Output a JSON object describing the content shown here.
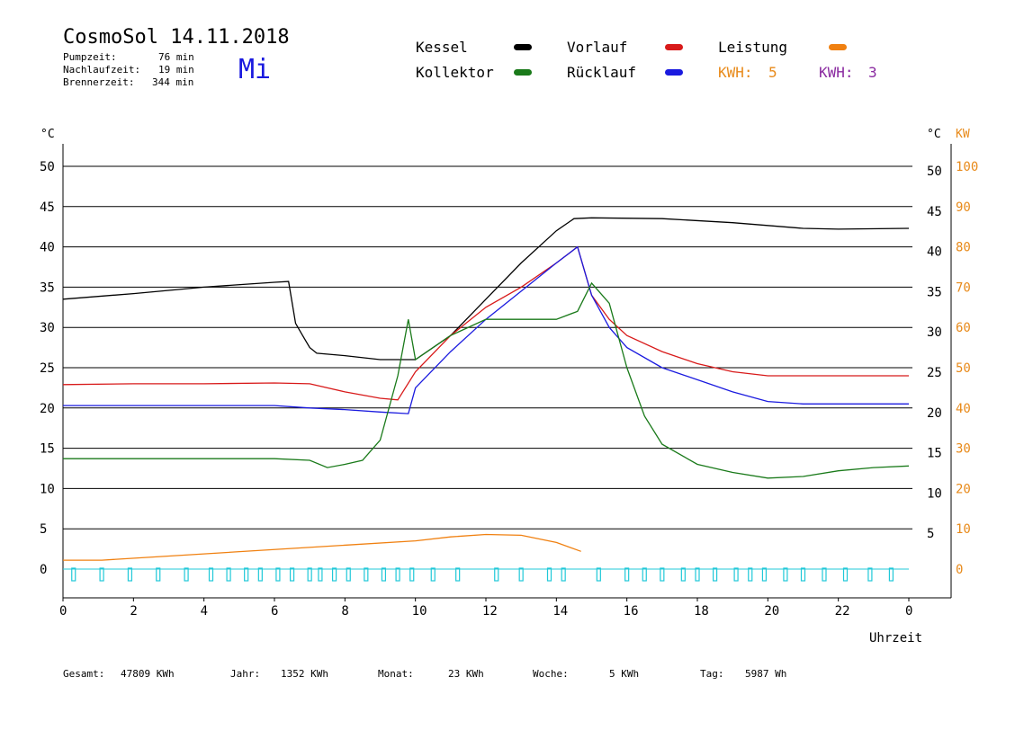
{
  "header": {
    "title": "CosmoSol 14.11.2018",
    "weekday": "Mi",
    "stats": [
      {
        "label": "Pumpzeit:",
        "value": "76 min"
      },
      {
        "label": "Nachlaufzeit:",
        "value": "19 min"
      },
      {
        "label": "Brennerzeit:",
        "value": "344 min"
      }
    ]
  },
  "legend": {
    "kessel": {
      "label": "Kessel",
      "color": "#000000"
    },
    "kollektor": {
      "label": "Kollektor",
      "color": "#1a7a1a"
    },
    "vorlauf": {
      "label": "Vorlauf",
      "color": "#d81a1a"
    },
    "ruecklauf": {
      "label": "Rücklauf",
      "color": "#1a1adf"
    },
    "leistung": {
      "label": "Leistung",
      "color": "#f08010"
    },
    "kwh1": {
      "label": "KWH:",
      "value": "5",
      "color": "#e88a1a"
    },
    "kwh2": {
      "label": "KWH:",
      "value": "3",
      "color": "#8a2aa0"
    }
  },
  "axes": {
    "left_unit": "°C",
    "right_unit": "°C",
    "right_unit2": "KW",
    "xlabel": "Uhrzeit"
  },
  "footer": {
    "gesamt_label": "Gesamt:",
    "gesamt_value": "47809 KWh",
    "jahr_label": "Jahr:",
    "jahr_value": "1352 KWh",
    "monat_label": "Monat:",
    "monat_value": "23 KWh",
    "woche_label": "Woche:",
    "woche_value": "5 KWh",
    "tag_label": "Tag:",
    "tag_value": "5987 Wh"
  },
  "chart_data": {
    "type": "line",
    "xlabel": "Uhrzeit",
    "ylabel": "°C",
    "xlim": [
      0,
      24
    ],
    "ylim": [
      0,
      50
    ],
    "y2lim": [
      0,
      100
    ],
    "x_ticks": [
      "0",
      "2",
      "4",
      "6",
      "8",
      "10",
      "12",
      "14",
      "16",
      "18",
      "20",
      "22",
      "0"
    ],
    "y_ticks": [
      0,
      5,
      10,
      15,
      20,
      25,
      30,
      35,
      40,
      45,
      50
    ],
    "y_ticks_right": [
      5,
      10,
      15,
      20,
      25,
      30,
      35,
      40,
      45,
      50
    ],
    "y2_ticks": [
      0,
      10,
      20,
      30,
      40,
      50,
      60,
      70,
      80,
      90,
      100
    ],
    "grid": "horizontal",
    "series": [
      {
        "name": "Kessel",
        "color": "#000000",
        "x": [
          0,
          2,
          4,
          6,
          6.4,
          6.6,
          6.8,
          7.0,
          7.2,
          8,
          9,
          10,
          11,
          12,
          13,
          14,
          14.5,
          15,
          17,
          19,
          21,
          22,
          24
        ],
        "y": [
          33.5,
          34.2,
          35,
          35.6,
          35.7,
          30.5,
          29,
          27.5,
          26.8,
          26.5,
          26,
          26,
          29,
          33.5,
          38,
          42,
          43.5,
          43.6,
          43.5,
          43,
          42.3,
          42.2,
          42.3
        ]
      },
      {
        "name": "Vorlauf",
        "color": "#d81a1a",
        "x": [
          0,
          2,
          4,
          6,
          7,
          8,
          9,
          9.5,
          10,
          11,
          12,
          13,
          14,
          14.6,
          15,
          15.5,
          16,
          17,
          18,
          19,
          20,
          22,
          24
        ],
        "y": [
          22.9,
          23,
          23,
          23.1,
          23,
          22,
          21.2,
          21,
          24.5,
          29,
          32.5,
          35,
          38,
          40,
          34,
          31,
          29,
          27,
          25.5,
          24.5,
          24,
          24,
          24
        ]
      },
      {
        "name": "Rücklauf",
        "color": "#1a1adf",
        "x": [
          0,
          2,
          4,
          6,
          7,
          8,
          9,
          9.8,
          10,
          11,
          12,
          13,
          14,
          14.6,
          15,
          15.5,
          16,
          17,
          18,
          19,
          20,
          21,
          22,
          24
        ],
        "y": [
          20.3,
          20.3,
          20.3,
          20.3,
          20,
          19.8,
          19.5,
          19.3,
          22.5,
          27,
          31,
          34.5,
          38,
          40,
          34,
          30,
          27.5,
          25,
          23.5,
          22,
          20.8,
          20.5,
          20.5,
          20.5
        ]
      },
      {
        "name": "Kollektor",
        "color": "#1a7a1a",
        "x": [
          0,
          2,
          4,
          6,
          7,
          7.5,
          8,
          8.5,
          9,
          9.5,
          9.8,
          10,
          11,
          12,
          13,
          14,
          14.6,
          15,
          15.5,
          16,
          16.5,
          17,
          18,
          19,
          20,
          21,
          22,
          23,
          24
        ],
        "y": [
          13.7,
          13.7,
          13.7,
          13.7,
          13.5,
          12.6,
          13,
          13.5,
          16,
          24,
          31,
          26,
          29,
          31,
          31,
          31,
          32,
          35.5,
          33,
          25,
          19,
          15.5,
          13,
          12,
          11.3,
          11.5,
          12.2,
          12.6,
          12.8
        ]
      },
      {
        "name": "Leistung",
        "color": "#f08010",
        "x": [
          0,
          1.1,
          10,
          11,
          12,
          13,
          14,
          14.7
        ],
        "y": [
          1.1,
          1.1,
          3.5,
          4,
          4.3,
          4.2,
          3.3,
          2.2
        ]
      }
    ],
    "pump_markers_x": [
      0.3,
      1.1,
      1.9,
      2.7,
      3.5,
      4.2,
      4.7,
      5.2,
      5.6,
      6.1,
      6.5,
      7.0,
      7.3,
      7.7,
      8.1,
      8.6,
      9.1,
      9.5,
      9.9,
      10.5,
      11.2,
      12.3,
      13.0,
      13.8,
      14.2,
      15.2,
      16.0,
      16.5,
      17.0,
      17.6,
      18.0,
      18.5,
      19.1,
      19.5,
      19.9,
      20.5,
      21.0,
      21.6,
      22.2,
      22.9,
      23.5
    ]
  }
}
